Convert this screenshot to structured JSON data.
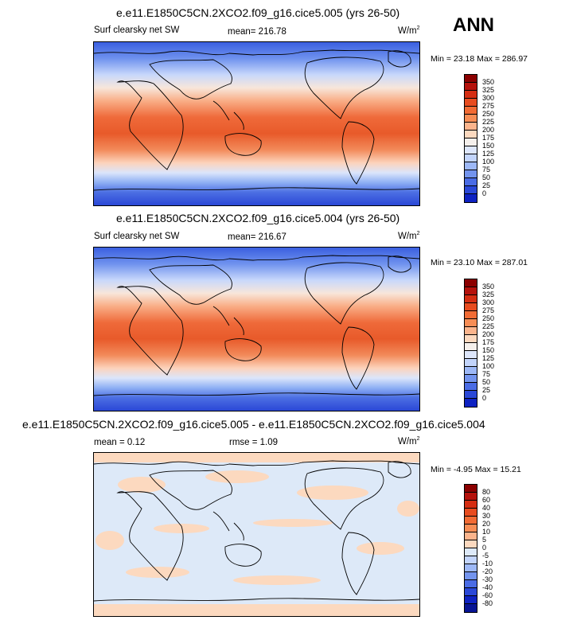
{
  "season": "ANN",
  "panels": [
    {
      "title": "e.e11.E1850C5CN.2XCO2.f09_g16.cice5.005 (yrs 26-50)",
      "left_label": "Surf clearsky net SW",
      "mean_label": "mean= 216.78",
      "units": "W/m",
      "units_sup": "2",
      "minmax": "Min = 23.18 Max = 286.97",
      "colorbar_labels": [
        "350",
        "325",
        "300",
        "275",
        "250",
        "225",
        "200",
        "175",
        "150",
        "125",
        "100",
        "75",
        "50",
        "25",
        "0"
      ],
      "colorbar_colors": [
        "#8b0000",
        "#b5120c",
        "#d52d12",
        "#e84c1f",
        "#f26b34",
        "#f78d55",
        "#fbb48c",
        "#fcd9bf",
        "#f5f0ec",
        "#dde6fb",
        "#c2d4fb",
        "#9db8f6",
        "#7394ee",
        "#4a6ce5",
        "#2a48d8",
        "#0e22c2"
      ]
    },
    {
      "title": "e.e11.E1850C5CN.2XCO2.f09_g16.cice5.004 (yrs 26-50)",
      "left_label": "Surf clearsky net SW",
      "mean_label": "mean= 216.67",
      "units": "W/m",
      "units_sup": "2",
      "minmax": "Min = 23.10 Max = 287.01",
      "colorbar_labels": [
        "350",
        "325",
        "300",
        "275",
        "250",
        "225",
        "200",
        "175",
        "150",
        "125",
        "100",
        "75",
        "50",
        "25",
        "0"
      ],
      "colorbar_colors": [
        "#8b0000",
        "#b5120c",
        "#d52d12",
        "#e84c1f",
        "#f26b34",
        "#f78d55",
        "#fbb48c",
        "#fcd9bf",
        "#f5f0ec",
        "#dde6fb",
        "#c2d4fb",
        "#9db8f6",
        "#7394ee",
        "#4a6ce5",
        "#2a48d8",
        "#0e22c2"
      ]
    },
    {
      "title": "e.e11.E1850C5CN.2XCO2.f09_g16.cice5.005 - e.e11.E1850C5CN.2XCO2.f09_g16.cice5.004",
      "mean_label": "mean =   0.12",
      "rmse_label": "rmse =   1.09",
      "units": "W/m",
      "units_sup": "2",
      "minmax": "Min = -4.95 Max = 15.21",
      "colorbar_labels": [
        "80",
        "60",
        "40",
        "30",
        "20",
        "10",
        "5",
        "0",
        "-5",
        "-10",
        "-20",
        "-30",
        "-40",
        "-60",
        "-80"
      ],
      "colorbar_colors": [
        "#8b0000",
        "#b5120c",
        "#d52d12",
        "#e84c1f",
        "#f26b34",
        "#f78d55",
        "#fbb48c",
        "#fcd9bf",
        "#dde9f8",
        "#c2d4fb",
        "#9db8f6",
        "#7394ee",
        "#4a6ce5",
        "#2a48d8",
        "#0e22c2",
        "#071494"
      ]
    }
  ]
}
